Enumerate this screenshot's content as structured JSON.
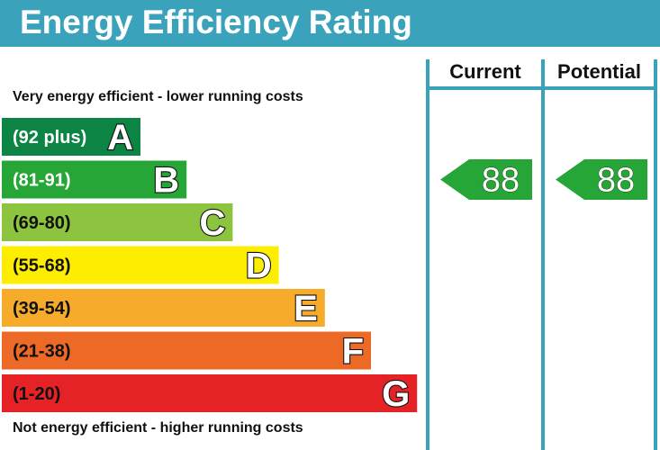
{
  "title": "Energy Efficiency Rating",
  "columns": {
    "current": "Current",
    "potential": "Potential"
  },
  "notes": {
    "top": "Very energy efficient - lower running costs",
    "bottom": "Not energy efficient - higher running costs"
  },
  "chart_data": {
    "type": "bar",
    "title": "Energy Efficiency Rating",
    "bands": [
      {
        "letter": "A",
        "range": "(92 plus)",
        "min": 92,
        "max": 100,
        "color": "#0c8443",
        "text_color": "#ffffff"
      },
      {
        "letter": "B",
        "range": "(81-91)",
        "min": 81,
        "max": 91,
        "color": "#27a638",
        "text_color": "#ffffff"
      },
      {
        "letter": "C",
        "range": "(69-80)",
        "min": 69,
        "max": 80,
        "color": "#8cc43f",
        "text_color": "#111111"
      },
      {
        "letter": "D",
        "range": "(55-68)",
        "min": 55,
        "max": 68,
        "color": "#fded00",
        "text_color": "#111111"
      },
      {
        "letter": "E",
        "range": "(39-54)",
        "min": 39,
        "max": 54,
        "color": "#f7ab2a",
        "text_color": "#111111"
      },
      {
        "letter": "F",
        "range": "(21-38)",
        "min": 21,
        "max": 38,
        "color": "#ec6a26",
        "text_color": "#111111"
      },
      {
        "letter": "G",
        "range": "(1-20)",
        "min": 1,
        "max": 20,
        "color": "#e52226",
        "text_color": "#111111"
      }
    ],
    "ratings": {
      "current": {
        "value": 88,
        "band": "B",
        "color": "#27a638"
      },
      "potential": {
        "value": 88,
        "band": "B",
        "color": "#27a638"
      }
    }
  }
}
